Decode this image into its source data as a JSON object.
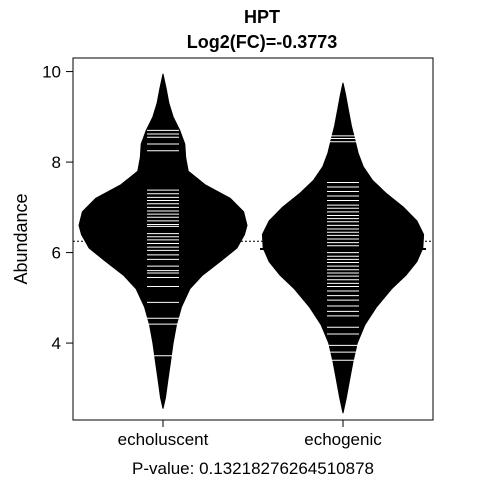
{
  "chart_data": {
    "type": "beanplot",
    "title": "HPT",
    "subtitle": "Log2(FC)=-0.3773",
    "ylabel": "Abundance",
    "footer": "P-value: 0.13218276264510878",
    "ylim": [
      2.3,
      10.3
    ],
    "yticks": [
      "4",
      "6",
      "8",
      "10"
    ],
    "overall_mean": 6.25,
    "colors": {
      "bean": "#000000",
      "strip": "#ffffff",
      "frame": "#000000"
    },
    "groups": [
      {
        "name": "echoluscent",
        "mean": 6.5,
        "density": [
          [
            2.55,
            0.0
          ],
          [
            2.8,
            0.03
          ],
          [
            3.2,
            0.06
          ],
          [
            3.6,
            0.09
          ],
          [
            4.0,
            0.12
          ],
          [
            4.4,
            0.16
          ],
          [
            4.8,
            0.22
          ],
          [
            5.2,
            0.32
          ],
          [
            5.5,
            0.47
          ],
          [
            5.8,
            0.68
          ],
          [
            6.1,
            0.88
          ],
          [
            6.4,
            0.97
          ],
          [
            6.6,
            1.0
          ],
          [
            6.9,
            0.96
          ],
          [
            7.2,
            0.8
          ],
          [
            7.5,
            0.5
          ],
          [
            7.8,
            0.3
          ],
          [
            8.1,
            0.27
          ],
          [
            8.4,
            0.26
          ],
          [
            8.7,
            0.2
          ],
          [
            9.0,
            0.12
          ],
          [
            9.3,
            0.07
          ],
          [
            9.6,
            0.04
          ],
          [
            9.95,
            0.0
          ]
        ],
        "values": [
          3.72,
          4.42,
          4.55,
          4.9,
          5.25,
          5.45,
          5.55,
          5.6,
          5.7,
          5.85,
          5.95,
          6.05,
          6.12,
          6.2,
          6.28,
          6.35,
          6.42,
          6.5,
          6.58,
          6.62,
          6.7,
          6.78,
          6.85,
          6.92,
          7.0,
          7.08,
          7.15,
          7.22,
          7.3,
          7.38,
          8.25,
          8.4,
          8.55,
          8.62,
          8.7
        ]
      },
      {
        "name": "echogenic",
        "mean": 6.08,
        "density": [
          [
            2.45,
            0.0
          ],
          [
            2.8,
            0.04
          ],
          [
            3.2,
            0.08
          ],
          [
            3.6,
            0.12
          ],
          [
            4.0,
            0.17
          ],
          [
            4.4,
            0.26
          ],
          [
            4.8,
            0.4
          ],
          [
            5.2,
            0.58
          ],
          [
            5.5,
            0.75
          ],
          [
            5.8,
            0.88
          ],
          [
            6.1,
            0.95
          ],
          [
            6.4,
            0.96
          ],
          [
            6.7,
            0.88
          ],
          [
            7.0,
            0.72
          ],
          [
            7.3,
            0.52
          ],
          [
            7.6,
            0.35
          ],
          [
            7.9,
            0.24
          ],
          [
            8.2,
            0.18
          ],
          [
            8.5,
            0.14
          ],
          [
            8.8,
            0.1
          ],
          [
            9.2,
            0.06
          ],
          [
            9.5,
            0.03
          ],
          [
            9.75,
            0.0
          ]
        ],
        "values": [
          3.62,
          3.8,
          3.95,
          4.2,
          4.35,
          4.6,
          4.7,
          4.82,
          4.95,
          5.05,
          5.15,
          5.25,
          5.32,
          5.4,
          5.48,
          5.55,
          5.62,
          5.7,
          5.78,
          5.85,
          5.92,
          6.0,
          6.08,
          6.15,
          6.22,
          6.3,
          6.38,
          6.45,
          6.52,
          6.6,
          6.68,
          6.75,
          6.82,
          6.9,
          6.98,
          7.05,
          7.15,
          7.25,
          7.35,
          7.45,
          7.55,
          8.45,
          8.52,
          8.58
        ]
      }
    ]
  }
}
